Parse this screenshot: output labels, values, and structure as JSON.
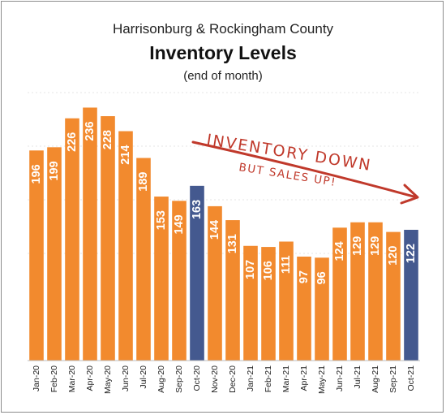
{
  "chart_data": {
    "type": "bar",
    "title": "Inventory Levels",
    "subtitle": "Harrisonburg & Rockingham County",
    "note": "(end of month)",
    "categories": [
      "Jan-20",
      "Feb-20",
      "Mar-20",
      "Apr-20",
      "May-20",
      "Jun-20",
      "Jul-20",
      "Aug-20",
      "Sep-20",
      "Oct-20",
      "Nov-20",
      "Dec-20",
      "Jan-21",
      "Feb-21",
      "Mar-21",
      "Apr-21",
      "May-21",
      "Jun-21",
      "Jul-21",
      "Aug-21",
      "Sep-21",
      "Oct-21"
    ],
    "values": [
      196,
      199,
      226,
      236,
      228,
      214,
      189,
      153,
      149,
      163,
      144,
      131,
      107,
      106,
      111,
      97,
      96,
      124,
      129,
      129,
      120,
      122
    ],
    "highlighted": [
      "Oct-20",
      "Oct-21"
    ],
    "ylim": [
      0,
      250
    ],
    "grid": true,
    "legend": "none",
    "annotation": {
      "line1": "INVENTORY DOWN",
      "line2": "BUT SALES UP!"
    },
    "colors": {
      "bar": "#F28A2E",
      "highlight": "#44598F",
      "annotation": "#C0392B",
      "grid": "#e6e6e6"
    }
  }
}
